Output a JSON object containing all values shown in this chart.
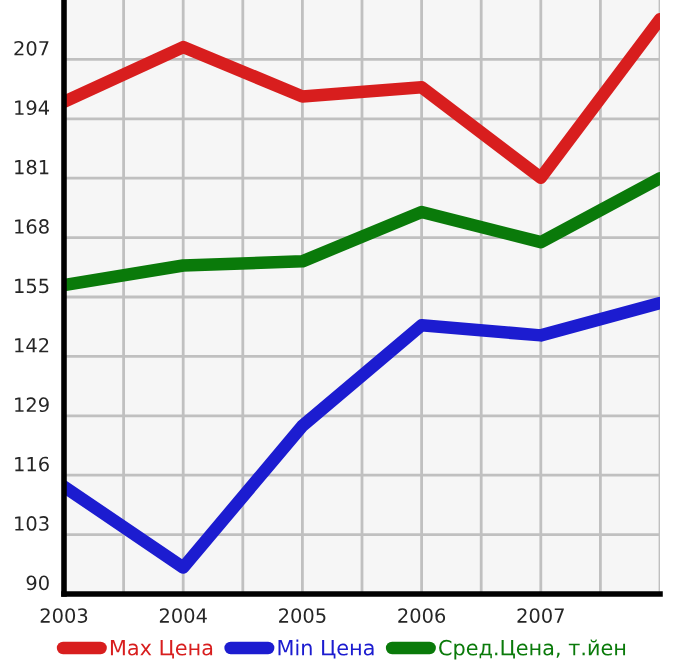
{
  "chart_data": {
    "type": "line",
    "x": [
      2003,
      2004,
      2005,
      2006,
      2007,
      2008
    ],
    "series": [
      {
        "name": "Max Цена",
        "color": "#d81e1e",
        "values": [
          197.7,
          209.7,
          198.9,
          200.9,
          181.1,
          215.8
        ]
      },
      {
        "name": "Min Цена",
        "color": "#1c1cd0",
        "values": [
          113.5,
          95.8,
          126.8,
          148.8,
          146.6,
          153.7
        ]
      },
      {
        "name": "Сред.Цена, т.йен",
        "color": "#0a7a0a",
        "values": [
          157.6,
          161.9,
          162.8,
          173.6,
          167.0,
          181.0
        ]
      }
    ],
    "xlim": [
      2003,
      2008
    ],
    "xticks": [
      2003,
      {
        "value": 2003.5,
        "label": null
      },
      2004,
      {
        "value": 2004.5,
        "label": null
      },
      2005,
      {
        "value": 2005.5,
        "label": null
      },
      2006,
      {
        "value": 2006.5,
        "label": null
      },
      2007,
      {
        "value": 2007.5,
        "label": null
      },
      {
        "value": 2008,
        "label": null
      }
    ],
    "ylim": [
      90,
      220
    ],
    "yticks": [
      90,
      103,
      116,
      129,
      142,
      155,
      168,
      181,
      194,
      207
    ],
    "grid": true,
    "legend": "bottom",
    "marker": "none",
    "line_style": "solid"
  }
}
